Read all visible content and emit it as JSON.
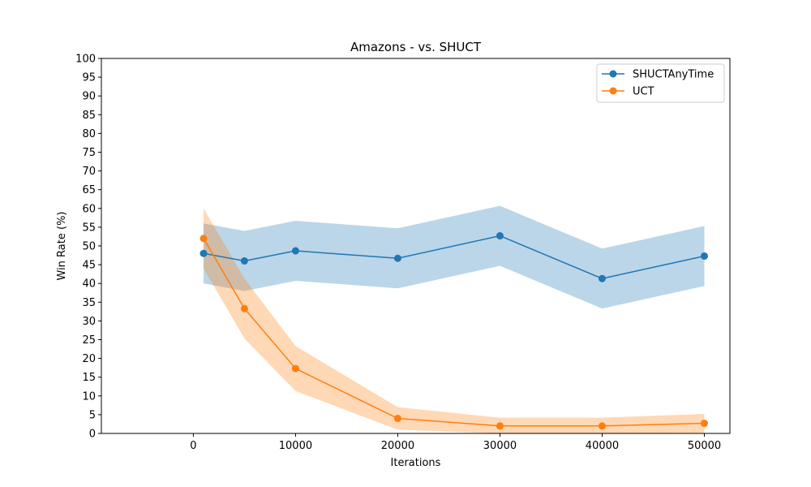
{
  "chart_data": {
    "type": "line",
    "title": "Amazons - vs. SHUCT",
    "xlabel": "Iterations",
    "ylabel": "Win Rate (%)",
    "xlim": [
      -9000,
      52500
    ],
    "ylim": [
      0,
      100
    ],
    "xticks": [
      0,
      10000,
      20000,
      30000,
      40000,
      50000
    ],
    "yticks": [
      0,
      5,
      10,
      15,
      20,
      25,
      30,
      35,
      40,
      45,
      50,
      55,
      60,
      65,
      70,
      75,
      80,
      85,
      90,
      95,
      100
    ],
    "x": [
      1000,
      5000,
      10000,
      20000,
      30000,
      40000,
      50000
    ],
    "legend_position": "top-right",
    "grid": false,
    "series": [
      {
        "name": "SHUCTAnyTime",
        "color": "#1f77b4",
        "values": [
          48.0,
          46.0,
          48.7,
          46.7,
          52.7,
          41.3,
          47.3
        ],
        "lower": [
          40.0,
          38.0,
          40.7,
          38.7,
          44.7,
          33.3,
          39.3
        ],
        "upper": [
          56.0,
          54.0,
          56.7,
          54.7,
          60.7,
          49.3,
          55.3
        ]
      },
      {
        "name": "UCT",
        "color": "#ff7f0e",
        "values": [
          52.0,
          33.3,
          17.3,
          4.0,
          2.0,
          2.0,
          2.7
        ],
        "lower": [
          44.0,
          25.3,
          11.3,
          1.0,
          0.0,
          0.0,
          0.2
        ],
        "upper": [
          60.0,
          41.3,
          23.3,
          7.0,
          4.2,
          4.2,
          5.2
        ]
      }
    ]
  }
}
